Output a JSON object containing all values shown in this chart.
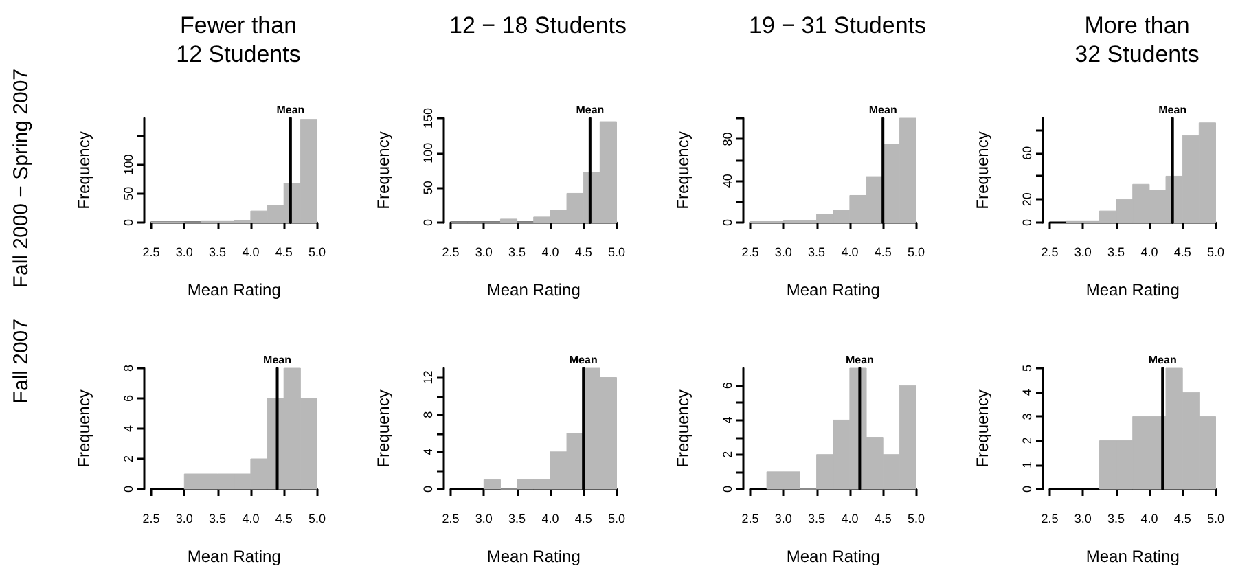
{
  "chart_data": [
    {
      "type": "histogram",
      "title": "Fewer than\n12 Students",
      "xlabel": "Mean Rating",
      "ylabel": "Frequency",
      "annotations": [
        "Fall 2000 − Spring 2007"
      ],
      "color": "#b8b8b8",
      "bins": [
        2.5,
        2.75,
        3.0,
        3.25,
        3.5,
        3.75,
        4.0,
        4.25,
        4.5,
        4.75,
        5.0
      ],
      "values": [
        1,
        1,
        0,
        2,
        2,
        4,
        20,
        30,
        68,
        178
      ],
      "xlim": [
        2.5,
        5.0
      ],
      "xticks": [
        2.5,
        {
          "value": 3,
          "label": "3.0"
        },
        3.5,
        {
          "value": 4,
          "label": "4.0"
        },
        4.5,
        {
          "value": 5,
          "label": "5.0"
        }
      ],
      "ylim": [
        0,
        180
      ],
      "yticks": [
        0,
        50,
        100,
        {
          "value": 150,
          "label": null
        }
      ],
      "ref_lines": [
        {
          "axis": "x",
          "value": 4.6,
          "label": "Mean"
        }
      ]
    },
    {
      "type": "histogram",
      "title": "12 − 18 Students",
      "xlabel": "Mean Rating",
      "ylabel": "Frequency",
      "color": "#b8b8b8",
      "bins": [
        2.5,
        2.75,
        3.0,
        3.25,
        3.5,
        3.75,
        4.0,
        4.25,
        4.5,
        4.75,
        5.0
      ],
      "values": [
        0,
        0,
        0,
        5,
        0,
        8,
        18,
        42,
        72,
        145
      ],
      "xlim": [
        2.5,
        5.0
      ],
      "xticks": [
        2.5,
        {
          "value": 3,
          "label": "3.0"
        },
        3.5,
        {
          "value": 4,
          "label": "4.0"
        },
        4.5,
        {
          "value": 5,
          "label": "5.0"
        }
      ],
      "ylim": [
        0,
        150
      ],
      "yticks": [
        0,
        50,
        100,
        150
      ],
      "ref_lines": [
        {
          "axis": "x",
          "value": 4.6,
          "label": "Mean"
        }
      ]
    },
    {
      "type": "histogram",
      "title": "19 − 31 Students",
      "xlabel": "Mean Rating",
      "ylabel": "Frequency",
      "color": "#b8b8b8",
      "bins": [
        2.5,
        2.75,
        3.0,
        3.25,
        3.5,
        3.75,
        4.0,
        4.25,
        4.5,
        4.75,
        5.0
      ],
      "values": [
        1,
        1,
        2,
        2,
        8,
        12,
        26,
        44,
        75,
        100
      ],
      "xlim": [
        2.5,
        5.0
      ],
      "xticks": [
        2.5,
        {
          "value": 3,
          "label": "3.0"
        },
        3.5,
        {
          "value": 4,
          "label": "4.0"
        },
        4.5,
        {
          "value": 5,
          "label": "5.0"
        }
      ],
      "ylim": [
        0,
        100
      ],
      "yticks": [
        0,
        {
          "value": 20,
          "label": null
        },
        40,
        {
          "value": 60,
          "label": null
        },
        80,
        {
          "value": 100,
          "label": null
        }
      ],
      "ref_lines": [
        {
          "axis": "x",
          "value": 4.5,
          "label": "Mean"
        }
      ]
    },
    {
      "type": "histogram",
      "title": "More than\n32 Students",
      "xlabel": "Mean Rating",
      "ylabel": "Frequency",
      "color": "#b8b8b8",
      "bins": [
        2.75,
        3.0,
        3.25,
        3.5,
        3.75,
        4.0,
        4.25,
        4.5,
        4.75,
        5.0
      ],
      "values": [
        1,
        1,
        10,
        20,
        33,
        28,
        40,
        75,
        86
      ],
      "xlim": [
        2.5,
        5.0
      ],
      "xticks": [
        2.5,
        {
          "value": 3,
          "label": "3.0"
        },
        3.5,
        {
          "value": 4,
          "label": "4.0"
        },
        4.5,
        {
          "value": 5,
          "label": "5.0"
        }
      ],
      "ylim": [
        0,
        90
      ],
      "yticks": [
        0,
        20,
        {
          "value": 40,
          "label": null
        },
        60,
        {
          "value": 80,
          "label": null
        }
      ],
      "ref_lines": [
        {
          "axis": "x",
          "value": 4.35,
          "label": "Mean"
        }
      ]
    },
    {
      "type": "histogram",
      "xlabel": "Mean Rating",
      "ylabel": "Frequency",
      "annotations": [
        "Fall 2007"
      ],
      "color": "#b8b8b8",
      "bins": [
        3.0,
        3.25,
        3.5,
        3.75,
        4.0,
        4.25,
        4.5,
        4.75,
        5.0
      ],
      "values": [
        1,
        1,
        1,
        1,
        2,
        6,
        8,
        6
      ],
      "xlim": [
        2.5,
        5.0
      ],
      "xticks": [
        2.5,
        {
          "value": 3,
          "label": "3.0"
        },
        3.5,
        {
          "value": 4,
          "label": "4.0"
        },
        4.5,
        {
          "value": 5,
          "label": "5.0"
        }
      ],
      "ylim": [
        0,
        8
      ],
      "yticks": [
        0,
        2,
        4,
        6,
        8
      ],
      "ref_lines": [
        {
          "axis": "x",
          "value": 4.4,
          "label": "Mean"
        }
      ]
    },
    {
      "type": "histogram",
      "xlabel": "Mean Rating",
      "ylabel": "Frequency",
      "color": "#b8b8b8",
      "bins": [
        3.0,
        3.25,
        3.5,
        3.75,
        4.0,
        4.25,
        4.5,
        4.75,
        5.0
      ],
      "values": [
        1,
        0,
        1,
        1,
        4,
        6,
        13,
        12
      ],
      "xlim": [
        2.5,
        5.0
      ],
      "xticks": [
        2.5,
        {
          "value": 3,
          "label": "3.0"
        },
        3.5,
        {
          "value": 4,
          "label": "4.0"
        },
        4.5,
        {
          "value": 5,
          "label": "5.0"
        }
      ],
      "ylim": [
        0,
        13
      ],
      "yticks": [
        0,
        {
          "value": 2,
          "label": null
        },
        4,
        {
          "value": 6,
          "label": null
        },
        8,
        {
          "value": 10,
          "label": null
        },
        12
      ],
      "ref_lines": [
        {
          "axis": "x",
          "value": 4.5,
          "label": "Mean"
        }
      ]
    },
    {
      "type": "histogram",
      "xlabel": "Mean Rating",
      "ylabel": "Frequency",
      "color": "#b8b8b8",
      "bins": [
        2.75,
        3.0,
        3.25,
        3.5,
        3.75,
        4.0,
        4.25,
        4.5,
        4.75,
        5.0
      ],
      "values": [
        1,
        1,
        0,
        2,
        4,
        7,
        3,
        2,
        6
      ],
      "xlim": [
        2.5,
        5.0
      ],
      "xticks": [
        2.5,
        {
          "value": 3,
          "label": "3.0"
        },
        3.5,
        {
          "value": 4,
          "label": "4.0"
        },
        4.5,
        {
          "value": 5,
          "label": "5.0"
        }
      ],
      "ylim": [
        0,
        7
      ],
      "yticks": [
        0,
        {
          "value": 1,
          "label": null
        },
        2,
        {
          "value": 3,
          "label": null
        },
        4,
        {
          "value": 5,
          "label": null
        },
        6
      ],
      "ref_lines": [
        {
          "axis": "x",
          "value": 4.15,
          "label": "Mean"
        }
      ]
    },
    {
      "type": "histogram",
      "xlabel": "Mean Rating",
      "ylabel": "Frequency",
      "color": "#b8b8b8",
      "bins": [
        3.25,
        3.5,
        3.75,
        4.0,
        4.25,
        4.5,
        4.75,
        5.0
      ],
      "values": [
        2,
        2,
        3,
        3,
        5,
        4,
        3
      ],
      "xlim": [
        2.5,
        5.0
      ],
      "xticks": [
        2.5,
        {
          "value": 3,
          "label": "3.0"
        },
        3.5,
        {
          "value": 4,
          "label": "4.0"
        },
        4.5,
        {
          "value": 5,
          "label": "5.0"
        }
      ],
      "ylim": [
        0,
        5
      ],
      "yticks": [
        0,
        1,
        2,
        3,
        4,
        5
      ],
      "ref_lines": [
        {
          "axis": "x",
          "value": 4.2,
          "label": "Mean"
        }
      ]
    }
  ]
}
